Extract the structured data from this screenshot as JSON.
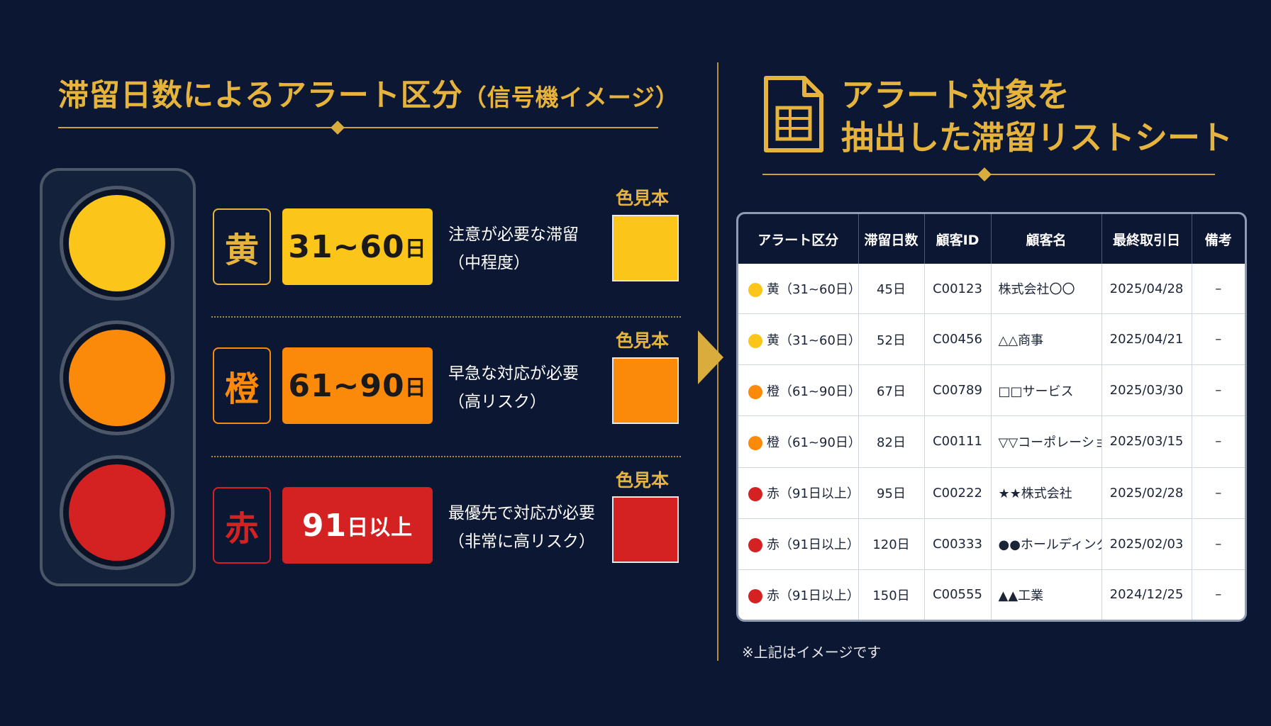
{
  "left": {
    "title": "滞留日数によるアラート区分",
    "subtitle": "（信号機イメージ）",
    "swatch_label": "色見本",
    "rows": [
      {
        "tag": "黄",
        "range_num": "31~60",
        "range_unit": "日",
        "desc_line1": "注意が必要な滞留",
        "desc_line2": "（中程度）",
        "color": "#fbc51a",
        "tag_color": "#e6b43c"
      },
      {
        "tag": "橙",
        "range_num": "61~90",
        "range_unit": "日",
        "desc_line1": "早急な対応が必要",
        "desc_line2": "（高リスク）",
        "color": "#fc8a0a",
        "tag_color": "#fc8a0a"
      },
      {
        "tag": "赤",
        "range_num": "91",
        "range_unit": "日以上",
        "desc_line1": "最優先で対応が必要",
        "desc_line2": "（非常に高リスク）",
        "color": "#d42222",
        "tag_color": "#d42222"
      }
    ]
  },
  "right": {
    "title_line1": "アラート対象を",
    "title_line2": "抽出した滞留リストシート",
    "icon": "spreadsheet-document-icon",
    "table": {
      "headers": [
        "アラート区分",
        "滞留日数",
        "顧客ID",
        "顧客名",
        "最終取引日",
        "備考"
      ],
      "rows": [
        {
          "category": "黄（31~60日）",
          "dot_color": "#fbc51a",
          "days": "45日",
          "customer_id": "C00123",
          "customer_name": "株式会社〇〇",
          "last_date": "2025/04/28",
          "note": "–"
        },
        {
          "category": "黄（31~60日）",
          "dot_color": "#fbc51a",
          "days": "52日",
          "customer_id": "C00456",
          "customer_name": "△△商事",
          "last_date": "2025/04/21",
          "note": "–"
        },
        {
          "category": "橙（61~90日）",
          "dot_color": "#fc8a0a",
          "days": "67日",
          "customer_id": "C00789",
          "customer_name": "□□サービス",
          "last_date": "2025/03/30",
          "note": "–"
        },
        {
          "category": "橙（61~90日）",
          "dot_color": "#fc8a0a",
          "days": "82日",
          "customer_id": "C00111",
          "customer_name": "▽▽コーポレーション",
          "last_date": "2025/03/15",
          "note": "–"
        },
        {
          "category": "赤（91日以上）",
          "dot_color": "#d42222",
          "days": "95日",
          "customer_id": "C00222",
          "customer_name": "★★株式会社",
          "last_date": "2025/02/28",
          "note": "–"
        },
        {
          "category": "赤（91日以上）",
          "dot_color": "#d42222",
          "days": "120日",
          "customer_id": "C00333",
          "customer_name": "●●ホールディングス",
          "last_date": "2025/02/03",
          "note": "–"
        },
        {
          "category": "赤（91日以上）",
          "dot_color": "#d42222",
          "days": "150日",
          "customer_id": "C00555",
          "customer_name": "▲▲工業",
          "last_date": "2024/12/25",
          "note": "–"
        }
      ]
    },
    "footnote": "※上記はイメージです"
  },
  "colors": {
    "background": "#0c1733",
    "accent_gold": "#e6b43c",
    "yellow": "#fbc51a",
    "orange": "#fc8a0a",
    "red": "#d42222"
  }
}
